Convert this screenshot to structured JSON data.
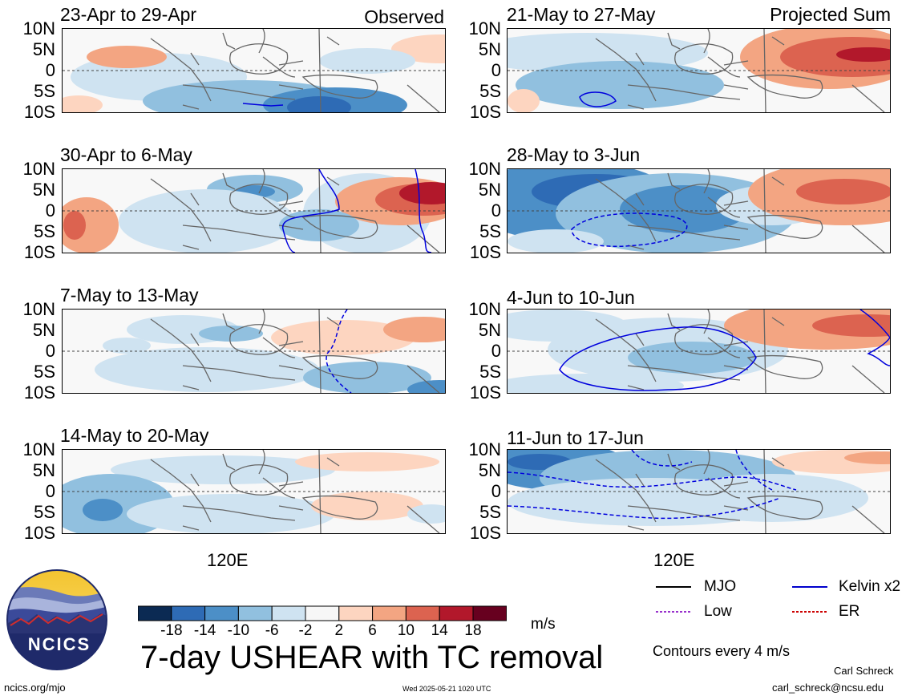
{
  "chart_data": {
    "type": "heatmap",
    "title": "7-day USHEAR with TC removal",
    "units": "m/s",
    "contour_note": "Contours every 4 m/s",
    "latitude_labels": [
      "10N",
      "5N",
      "0",
      "5S",
      "10S"
    ],
    "longitude_labels": [
      "120E"
    ],
    "colorbar": {
      "ticks": [
        "-18",
        "-14",
        "-10",
        "-6",
        "-2",
        "2",
        "6",
        "10",
        "14",
        "18"
      ],
      "colors": [
        "#0b2a53",
        "#2e6bb5",
        "#4c8fc7",
        "#91c0df",
        "#cfe3f1",
        "#f7f7f7",
        "#fdd5c0",
        "#f3a582",
        "#dc6350",
        "#b2182b",
        "#67001f"
      ]
    },
    "column_headers": {
      "left": "Observed",
      "right": "Projected Sum"
    },
    "panels": [
      {
        "col": "left",
        "period": "23-Apr to 29-Apr"
      },
      {
        "col": "left",
        "period": "30-Apr to 6-May"
      },
      {
        "col": "left",
        "period": "7-May to 13-May"
      },
      {
        "col": "left",
        "period": "14-May to 20-May"
      },
      {
        "col": "right",
        "period": "21-May to 27-May"
      },
      {
        "col": "right",
        "period": "28-May to 3-Jun"
      },
      {
        "col": "right",
        "period": "4-Jun to 10-Jun"
      },
      {
        "col": "right",
        "period": "11-Jun to 17-Jun"
      }
    ],
    "legend": [
      {
        "label": "MJO",
        "color": "#000000",
        "style": "solid"
      },
      {
        "label": "Kelvin x2",
        "color": "#0000cc",
        "style": "solid"
      },
      {
        "label": "Low",
        "color": "#9933cc",
        "style": "dashed"
      },
      {
        "label": "ER",
        "color": "#cc0000",
        "style": "dashed"
      }
    ]
  },
  "logo": {
    "text": "NCICS"
  },
  "footer": {
    "url": "ncics.org/mjo",
    "timestamp": "Wed 2025-05-21 1020 UTC",
    "author": "Carl Schreck",
    "email": "carl_schreck@ncsu.edu"
  }
}
